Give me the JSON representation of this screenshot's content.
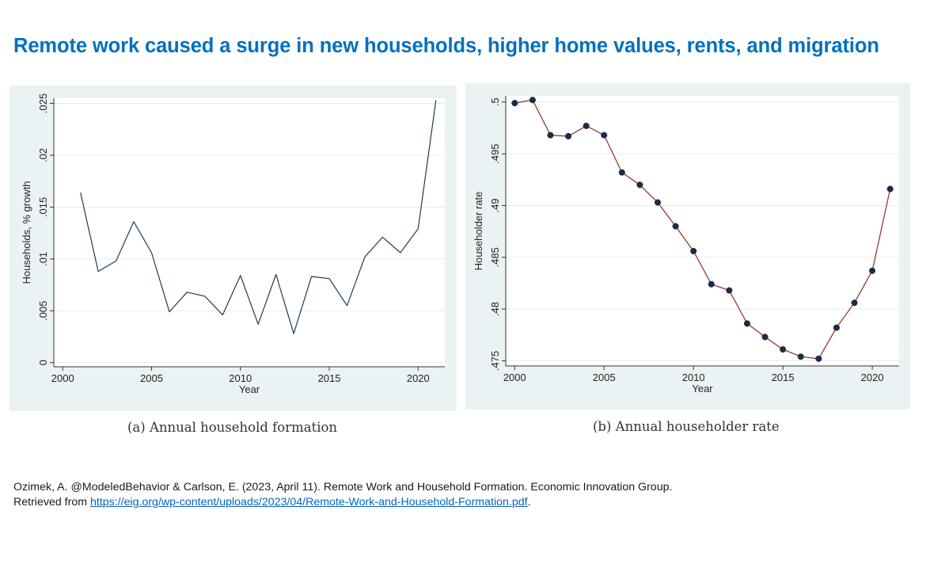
{
  "headline": "Remote work caused a surge in new households, higher home values, rents, and migration",
  "citation": {
    "line1": "Ozimek, A. @ModeledBehavior & Carlson, E. (2023, April 11). Remote Work and Household Formation. Economic Innovation Group.",
    "line2_prefix": "Retrieved from ",
    "link": "https://eig.org/wp-content/uploads/2023/04/Remote-Work-and-Household-Formation.pdf",
    "line2_suffix": "."
  },
  "colors": {
    "headline": "#0070c0",
    "panel_bg": "#eaf2f3",
    "series_a": "#1f3b55",
    "series_b_line": "#8b2a2a",
    "series_b_marker": "#1f2a44"
  },
  "chart_data": [
    {
      "type": "line",
      "caption": "(a) Annual household formation",
      "xlabel": "Year",
      "ylabel": "Households, % growth",
      "xlim": [
        1999.5,
        2021.5
      ],
      "ylim": [
        -0.0004,
        0.0255
      ],
      "xticks": [
        2000,
        2005,
        2010,
        2015,
        2020
      ],
      "xtick_labels": [
        "2000",
        "2005",
        "2010",
        "2015",
        "2020"
      ],
      "yticks": [
        0,
        0.005,
        0.01,
        0.015,
        0.02,
        0.025
      ],
      "ytick_labels": [
        "0",
        ".005",
        ".01",
        ".015",
        ".02",
        ".025"
      ],
      "grid": true,
      "markers": false,
      "series": [
        {
          "x": [
            2001,
            2002,
            2003,
            2004,
            2005,
            2006,
            2007,
            2008,
            2009,
            2010,
            2011,
            2012,
            2013,
            2014,
            2015,
            2016,
            2017,
            2018,
            2019,
            2020,
            2021
          ],
          "values": [
            0.0164,
            0.0088,
            0.0098,
            0.0136,
            0.0106,
            0.0049,
            0.0068,
            0.0064,
            0.0046,
            0.0084,
            0.0037,
            0.0085,
            0.0028,
            0.0083,
            0.0081,
            0.0055,
            0.0102,
            0.0121,
            0.0106,
            0.0129,
            0.0253
          ]
        }
      ]
    },
    {
      "type": "line",
      "caption": "(b) Annual householder rate",
      "xlabel": "Year",
      "ylabel": "Householder rate",
      "xlim": [
        1999.5,
        2021.5
      ],
      "ylim": [
        0.4745,
        0.5006
      ],
      "xticks": [
        2000,
        2005,
        2010,
        2015,
        2020
      ],
      "xtick_labels": [
        "2000",
        "2005",
        "2010",
        "2015",
        "2020"
      ],
      "yticks": [
        0.475,
        0.48,
        0.485,
        0.49,
        0.495,
        0.5
      ],
      "ytick_labels": [
        ".475",
        ".48",
        ".485",
        ".49",
        ".495",
        ".5"
      ],
      "grid": true,
      "markers": true,
      "series": [
        {
          "x": [
            2000,
            2001,
            2002,
            2003,
            2004,
            2005,
            2006,
            2007,
            2008,
            2009,
            2010,
            2011,
            2012,
            2013,
            2014,
            2015,
            2016,
            2017,
            2018,
            2019,
            2020,
            2021
          ],
          "values": [
            0.4999,
            0.5002,
            0.4968,
            0.4967,
            0.4977,
            0.4968,
            0.4932,
            0.492,
            0.4903,
            0.488,
            0.4856,
            0.4824,
            0.4818,
            0.4786,
            0.4773,
            0.4761,
            0.4754,
            0.4752,
            0.4782,
            0.4806,
            0.4837,
            0.4916
          ]
        }
      ]
    }
  ]
}
